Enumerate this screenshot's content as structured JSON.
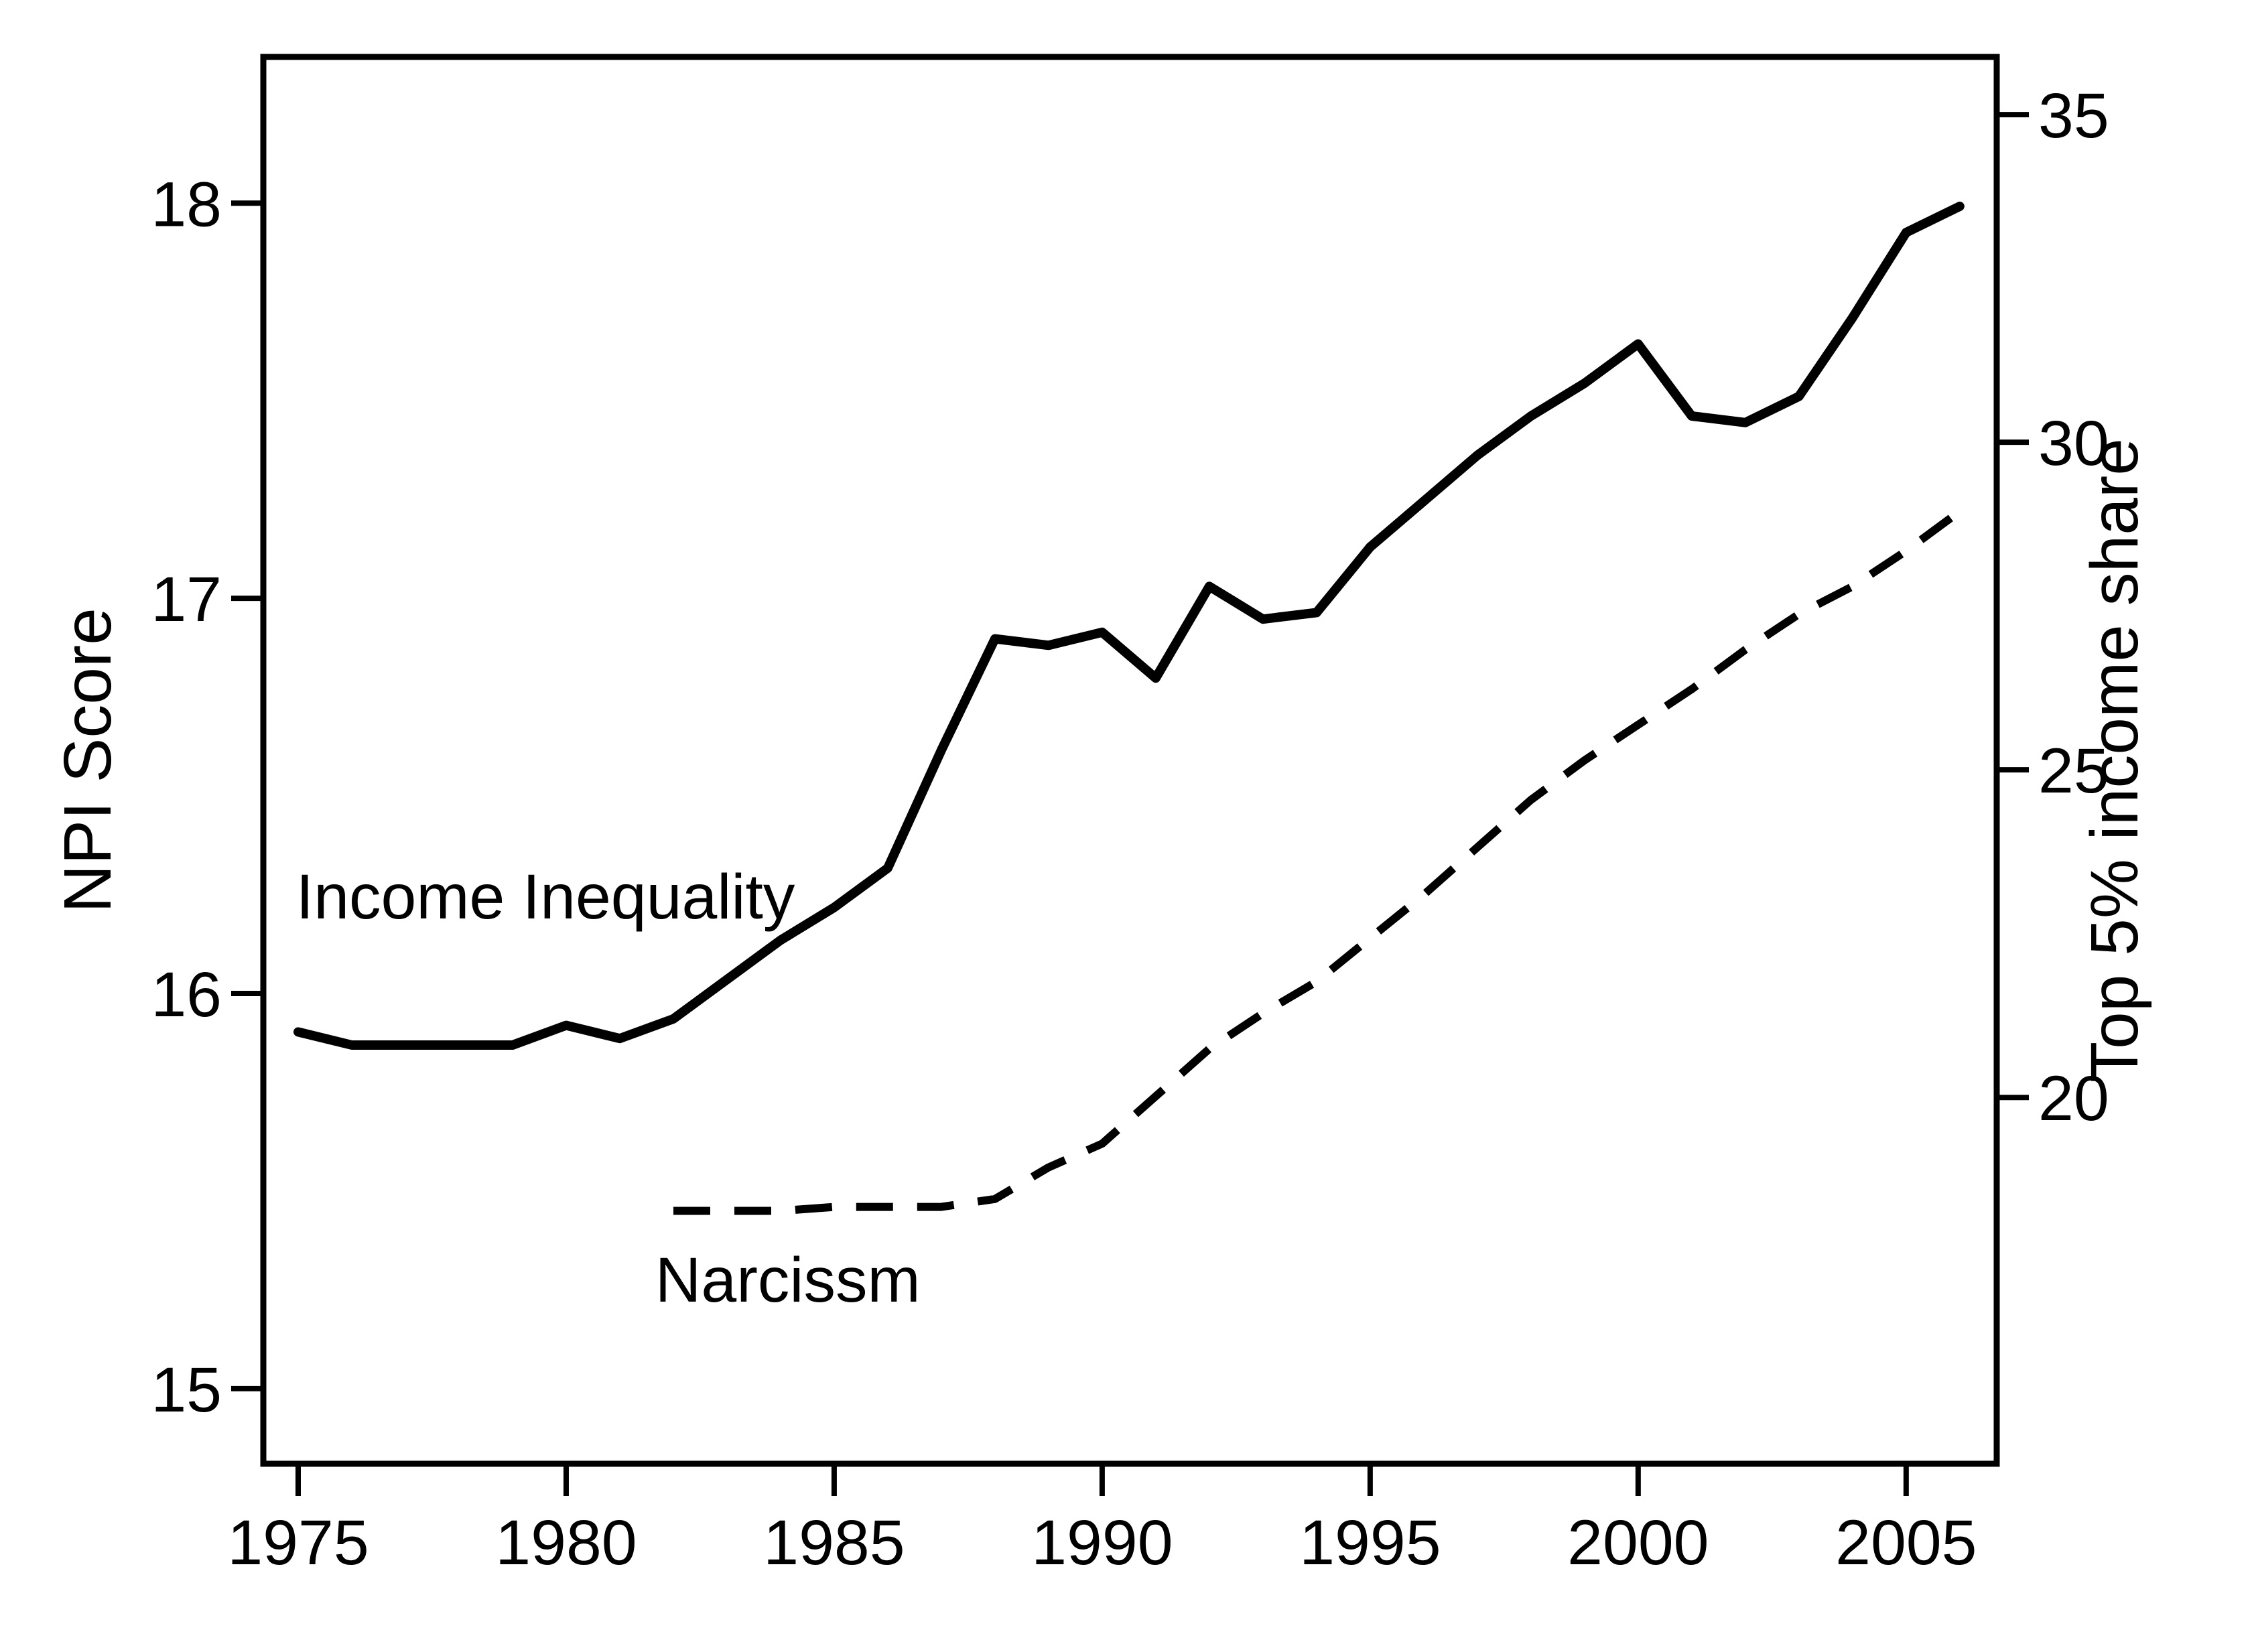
{
  "figure": {
    "background_color": "#ffffff",
    "ink_color": "#000000",
    "title": ""
  },
  "chart_data": {
    "type": "line",
    "title": "",
    "grid": false,
    "legend_position": "labels-inside-plot",
    "x_axis": {
      "label": "",
      "tick_labels": [
        "1975",
        "1980",
        "1985",
        "1990",
        "1995",
        "2000",
        "2005"
      ],
      "tick_values": [
        1975,
        1980,
        1985,
        1990,
        1995,
        2000,
        2005
      ],
      "range": [
        1974.35,
        2006.69
      ]
    },
    "left_axis": {
      "label": "NPI Score",
      "tick_labels": [
        "15",
        "16",
        "17",
        "18"
      ],
      "tick_values": [
        15,
        16,
        17,
        18
      ],
      "range": [
        14.81,
        18.37
      ]
    },
    "right_axis": {
      "label": "Top 5% income share",
      "tick_labels": [
        "20",
        "25",
        "30",
        "35"
      ],
      "tick_values": [
        20,
        25,
        30,
        35
      ],
      "range": [
        14.41,
        35.88
      ]
    },
    "series": [
      {
        "name": "Income Inequality",
        "axis": "right",
        "line_style": "solid",
        "x": [
          1975,
          1976,
          1977,
          1978,
          1979,
          1980,
          1981,
          1982,
          1983,
          1984,
          1985,
          1986,
          1987,
          1988,
          1989,
          1990,
          1991,
          1992,
          1993,
          1994,
          1995,
          1996,
          1997,
          1998,
          1999,
          2000,
          2001,
          2002,
          2003,
          2004,
          2005,
          2006
        ],
        "values": [
          21.0,
          20.8,
          20.8,
          20.8,
          20.8,
          21.1,
          20.9,
          21.2,
          21.8,
          22.4,
          22.9,
          23.5,
          25.3,
          27.0,
          26.9,
          27.1,
          26.4,
          27.8,
          27.3,
          27.4,
          28.4,
          29.1,
          29.8,
          30.4,
          30.9,
          31.5,
          30.4,
          30.3,
          30.7,
          31.9,
          33.2,
          33.6
        ]
      },
      {
        "name": "Narcissm",
        "axis": "left",
        "line_style": "dashed",
        "x": [
          1982,
          1983,
          1984,
          1985,
          1986,
          1987,
          1988,
          1989,
          1990,
          1991,
          1992,
          1993,
          1994,
          1995,
          1996,
          1997,
          1998,
          1999,
          2000,
          2001,
          2002,
          2003,
          2004,
          2005,
          2006
        ],
        "values": [
          15.45,
          15.45,
          15.45,
          15.46,
          15.46,
          15.46,
          15.48,
          15.56,
          15.62,
          15.74,
          15.86,
          15.95,
          16.03,
          16.14,
          16.25,
          16.37,
          16.49,
          16.59,
          16.68,
          16.77,
          16.87,
          16.96,
          17.03,
          17.12,
          17.22
        ]
      }
    ],
    "annotations": [
      {
        "text": "Income Inequality",
        "x": 1974.96,
        "y": 16.19,
        "y_axis": "left",
        "anchor": "start"
      },
      {
        "text": "Narcissm",
        "x": 1981.66,
        "y": 15.22,
        "y_axis": "left",
        "anchor": "start"
      }
    ]
  }
}
